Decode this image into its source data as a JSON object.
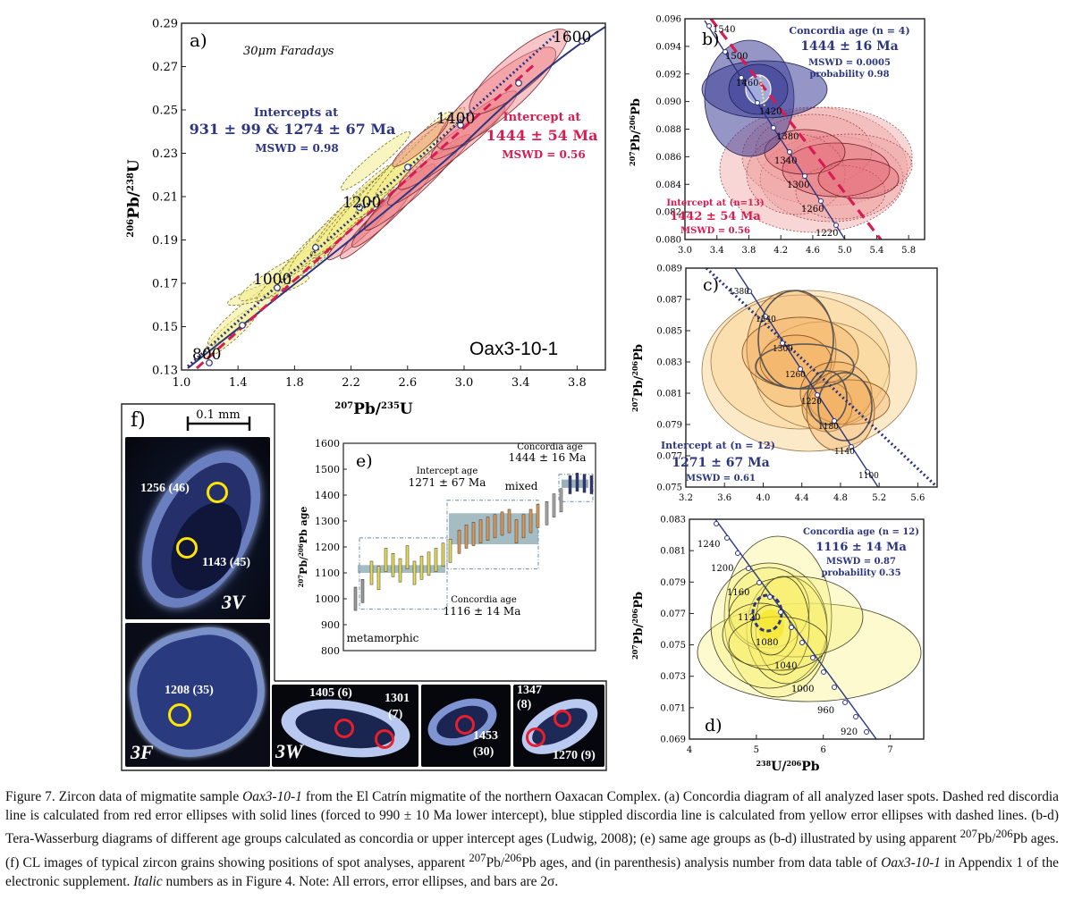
{
  "figure_title": "Figure 7.",
  "caption": {
    "t1": "Zircon data of migmatite sample ",
    "sample": "Oax3-10-1",
    "t2": " from the El Catrín migmatite of the northern Oaxacan Complex. (a) Concordia diagram of all analyzed laser spots. Dashed red discordia line is calculated from red error ellipses with solid lines (forced to 990 ± 10 Ma lower intercept), blue stippled discordia line is calculated from yellow error ellipses with dashed lines. (b-d) Tera-Wasserburg diagrams of different age groups calculated as concordia or upper intercept ages (Ludwig, 2008); (e) same age groups as (b-d) illustrated by using apparent ",
    "sup1": "207",
    "t3": "Pb/",
    "sup2": "206",
    "t4": "Pb ages. (f) CL images of typical zircon grains showing positions of spot analyses, apparent ",
    "sup3": "207",
    "t5": "Pb/",
    "sup4": "206",
    "t6": "Pb ages, and (in parenthesis) analysis number from data table of ",
    "sample2": "Oax3-10-1",
    "t7": " in Appendix 1 of the electronic supplement. ",
    "italic": "Italic",
    "t8": " numbers as in Figure 4. Note: All errors, error ellipses, and bars are 2σ."
  },
  "colors": {
    "navy": "#2b3580",
    "red": "#d81b50",
    "yellow": "#f2ec8c",
    "orange": "#f5c27a",
    "pink": "#f08a8a"
  },
  "chart_data": [
    {
      "panel": "a",
      "type": "scatter",
      "subtype": "concordia",
      "panel_label": "a)",
      "note": "30μm Faradays",
      "sample": "Oax3-10-1",
      "xlabel": "207Pb/235U",
      "ylabel": "206Pb/238U",
      "xlim": [
        1.0,
        4.0
      ],
      "ylim": [
        0.13,
        0.29
      ],
      "xticks": [
        "1.0",
        "1.4",
        "1.8",
        "2.2",
        "2.6",
        "3.0",
        "3.4",
        "3.8"
      ],
      "yticks": [
        "0.13",
        "0.15",
        "0.17",
        "0.19",
        "0.21",
        "0.23",
        "0.25",
        "0.27",
        "0.29"
      ],
      "age_ticks": [
        "800",
        "1000",
        "1200",
        "1400",
        "1600"
      ],
      "blue_intercepts": {
        "title": "Intercepts at",
        "value": "931 ± 99 & 1274 ± 67 Ma",
        "mswd": "MSWD = 0.98"
      },
      "red_intercept": {
        "title": "Intercept at",
        "value": "1444 ± 54 Ma",
        "mswd": "MSWD = 0.56"
      }
    },
    {
      "panel": "b",
      "type": "scatter",
      "subtype": "tera-wasserburg",
      "panel_label": "b)",
      "xlim": [
        3.0,
        6.0
      ],
      "ylim": [
        0.08,
        0.096
      ],
      "xticks": [
        "3.0",
        "3.4",
        "3.8",
        "4.2",
        "4.6",
        "5.0",
        "5.4",
        "5.8"
      ],
      "yticks": [
        "0.080",
        "0.082",
        "0.084",
        "0.086",
        "0.088",
        "0.090",
        "0.092",
        "0.094",
        "0.096"
      ],
      "ylabel": "207Pb/206Pb",
      "age_ticks": [
        "1540",
        "1500",
        "1460",
        "1420",
        "1380",
        "1340",
        "1300",
        "1260",
        "1220"
      ],
      "concordia": {
        "title": "Concordia age (n = 4)",
        "value": "1444 ± 16 Ma",
        "mswd": "MSWD = 0.0005",
        "prob": "probability 0.98"
      },
      "intercept": {
        "title": "Intercept at (n=13)",
        "value": "1442 ± 54 Ma",
        "mswd": "MSWD = 0.56"
      }
    },
    {
      "panel": "c",
      "type": "scatter",
      "subtype": "tera-wasserburg",
      "panel_label": "c)",
      "xlim": [
        3.2,
        5.8
      ],
      "ylim": [
        0.075,
        0.089
      ],
      "xticks": [
        "3.2",
        "3.6",
        "4.0",
        "4.4",
        "4.8",
        "5.2",
        "5.6"
      ],
      "yticks": [
        "0.075",
        "0.077",
        "0.079",
        "0.081",
        "0.083",
        "0.085",
        "0.087",
        "0.089"
      ],
      "ylabel": "207Pb/206Pb",
      "age_ticks": [
        "1380",
        "1340",
        "1300",
        "1260",
        "1220",
        "1180",
        "1140",
        "1100"
      ],
      "intercept": {
        "title": "Intercept at (n = 12)",
        "value": "1271 ± 67 Ma",
        "mswd": "MSWD = 0.61"
      }
    },
    {
      "panel": "d",
      "type": "scatter",
      "subtype": "tera-wasserburg",
      "panel_label": "d)",
      "xlim": [
        4,
        7.5
      ],
      "ylim": [
        0.069,
        0.083
      ],
      "xticks": [
        "4",
        "5",
        "6",
        "7"
      ],
      "yticks": [
        "0.069",
        "0.071",
        "0.073",
        "0.075",
        "0.077",
        "0.079",
        "0.081",
        "0.083"
      ],
      "xlabel": "238U/206Pb",
      "ylabel": "207Pb/206Pb",
      "age_ticks": [
        "1240",
        "1200",
        "1160",
        "1120",
        "1080",
        "1040",
        "1000",
        "960",
        "920"
      ],
      "concordia": {
        "title": "Concordia age (n = 12)",
        "value": "1116 ± 14 Ma",
        "mswd": "MSWD = 0.87",
        "prob": "probability 0.35"
      }
    },
    {
      "panel": "e",
      "type": "bar",
      "subtype": "age-bars",
      "panel_label": "e)",
      "ylabel": "207Pb/206Pb age",
      "ylim": [
        800,
        1600
      ],
      "yticks": [
        "1600",
        "1500",
        "1400",
        "1300",
        "1200",
        "1100",
        "1000",
        "900",
        "800"
      ],
      "labels": {
        "intercept_title": "Intercept age",
        "intercept_value": "1271 ± 67 Ma",
        "concordia_title": "Concordia age",
        "concordia_value": "1444 ± 16 Ma",
        "mixed": "mixed",
        "lower_title": "Concordia age",
        "lower_value": "1116 ± 14 Ma",
        "metamorphic": "metamorphic"
      },
      "groups": [
        {
          "name": "metamorphic",
          "color": "#999999",
          "centers": [
            1000,
            1030
          ]
        },
        {
          "name": "1116",
          "color": "#e8dd50",
          "centers": [
            1100,
            1080,
            1150,
            1130,
            1110,
            1160,
            1100,
            1120,
            1135,
            1150,
            1170,
            1185
          ]
        },
        {
          "name": "1271",
          "color": "#e39a55",
          "centers": [
            1220,
            1240,
            1250,
            1260,
            1270,
            1280,
            1290,
            1300,
            1260,
            1280,
            1300,
            1320
          ]
        },
        {
          "name": "mixed",
          "color": "#aaaaaa",
          "centers": [
            1330,
            1360,
            1380
          ]
        },
        {
          "name": "1444",
          "color": "#2b3580",
          "centers": [
            1440,
            1450,
            1445,
            1440
          ]
        }
      ]
    }
  ],
  "panel_f": {
    "label": "f)",
    "scale": "0.1 mm",
    "grains": [
      {
        "tag": "3V",
        "spots": [
          "1256 (46)",
          "1143 (45)"
        ]
      },
      {
        "tag": "3F",
        "spots": [
          "1208 (35)"
        ]
      },
      {
        "tag": "3W",
        "spots": [
          "1405 (6)",
          "1301",
          "(7)"
        ]
      },
      {
        "tag": "",
        "spots": [
          "1453",
          "(30)"
        ]
      },
      {
        "tag": "",
        "spots": [
          "1347",
          "(8)",
          "1270 (9)"
        ]
      }
    ]
  }
}
